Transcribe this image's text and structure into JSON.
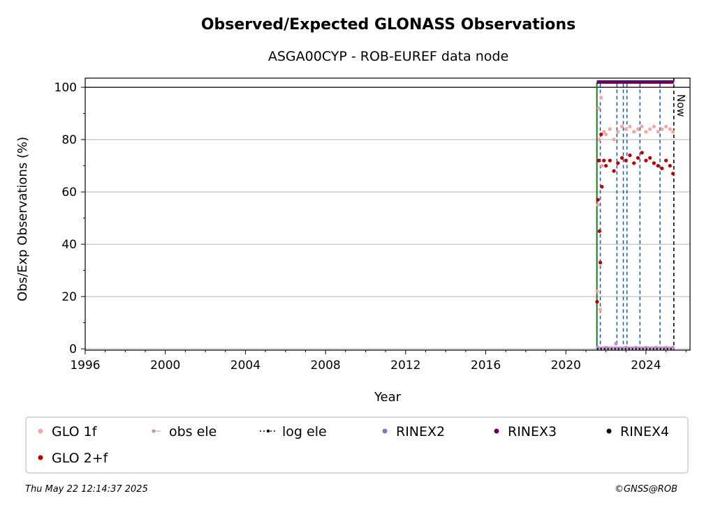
{
  "chart_data": {
    "type": "scatter",
    "title": "Observed/Expected GLONASS Observations",
    "subtitle": "ASGA00CYP - ROB-EUREF data node",
    "xlabel": "Year",
    "ylabel": "Obs/Exp Observations (%)",
    "xlim": [
      1996,
      2026.2
    ],
    "ylim": [
      -0.5,
      103.5
    ],
    "x_ticks": [
      1996,
      2000,
      2004,
      2008,
      2012,
      2016,
      2020,
      2024
    ],
    "y_ticks": [
      0,
      20,
      40,
      60,
      80,
      100
    ],
    "grid": "horizontal",
    "now_label": "Now",
    "now_year": 2025.39,
    "start_year": 2021.55,
    "event_lines": [
      2021.72,
      2022.55,
      2022.87,
      2023.05,
      2023.7,
      2024.7
    ],
    "series": [
      {
        "name": "GLO 1f",
        "color": "#f7a6a6",
        "x": [
          2021.56,
          2021.6,
          2021.64,
          2021.68,
          2021.72,
          2021.76,
          2021.8,
          2021.9,
          2022.0,
          2022.2,
          2022.4,
          2022.6,
          2022.8,
          2023.0,
          2023.2,
          2023.4,
          2023.6,
          2023.8,
          2024.0,
          2024.2,
          2024.4,
          2024.6,
          2024.8,
          2025.0,
          2025.2,
          2025.35
        ],
        "y": [
          22,
          55,
          92,
          80,
          15,
          96,
          70,
          83,
          82,
          84,
          80,
          83,
          85,
          84,
          85,
          83,
          84,
          85,
          83,
          84,
          85,
          83,
          84,
          85,
          84,
          83
        ]
      },
      {
        "name": "obs ele",
        "color": "#c58dd0",
        "x": [
          2021.6,
          2022.0,
          2022.5,
          2023.0,
          2023.5,
          2024.0,
          2024.5,
          2025.0,
          2025.35
        ],
        "y": [
          0.5,
          0.5,
          2,
          0.5,
          0.5,
          0.5,
          0.5,
          0.5,
          0.5
        ]
      },
      {
        "name": "log ele",
        "color": "#000000",
        "x": [
          2021.55,
          2025.39
        ],
        "y": [
          0,
          0
        ]
      },
      {
        "name": "RINEX2",
        "color": "#8877bb",
        "x": [],
        "y": []
      },
      {
        "name": "RINEX3",
        "color": "#660066",
        "x": [
          2021.55,
          2025.39
        ],
        "y": [
          102,
          102
        ]
      },
      {
        "name": "RINEX4",
        "color": "#220011",
        "x": [],
        "y": []
      },
      {
        "name": "GLO 2+f",
        "color": "#bb0000",
        "x": [
          2021.56,
          2021.6,
          2021.64,
          2021.68,
          2021.72,
          2021.76,
          2021.8,
          2021.9,
          2022.0,
          2022.2,
          2022.4,
          2022.6,
          2022.8,
          2023.0,
          2023.2,
          2023.4,
          2023.6,
          2023.8,
          2024.0,
          2024.2,
          2024.4,
          2024.6,
          2024.8,
          2025.0,
          2025.2,
          2025.35
        ],
        "y": [
          18,
          57,
          72,
          45,
          33,
          82,
          62,
          72,
          70,
          72,
          68,
          71,
          73,
          72,
          74,
          71,
          73,
          75,
          72,
          73,
          71,
          70,
          69,
          72,
          70,
          67
        ]
      }
    ]
  },
  "legend": {
    "items": [
      {
        "label": "GLO 1f",
        "color": "#f7a6a6",
        "style": "dot"
      },
      {
        "label": "obs ele",
        "color": "#c58dd0",
        "style": "line-dot"
      },
      {
        "label": "log ele",
        "color": "#000000",
        "style": "dotted-line"
      },
      {
        "label": "RINEX2",
        "color": "#8877bb",
        "style": "dot"
      },
      {
        "label": "RINEX3",
        "color": "#660066",
        "style": "dot"
      },
      {
        "label": "RINEX4",
        "color": "#220011",
        "style": "dot"
      },
      {
        "label": "GLO 2+f",
        "color": "#bb0000",
        "style": "dot"
      }
    ]
  },
  "footer": {
    "timestamp": "Thu May 22 12:14:37 2025",
    "credit": "©GNSS@ROB"
  }
}
